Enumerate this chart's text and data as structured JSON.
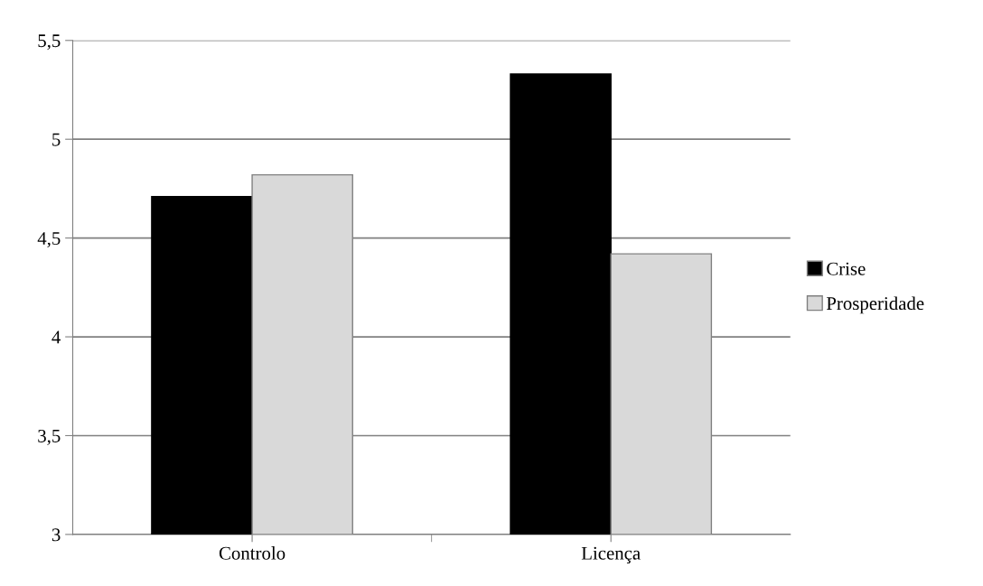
{
  "chart_data": {
    "type": "bar",
    "categories": [
      "Controlo",
      "Licença"
    ],
    "series": [
      {
        "name": "Crise",
        "color": "#000000",
        "values": [
          4.71,
          5.33
        ]
      },
      {
        "name": "Prosperidade",
        "color": "#d9d9d9",
        "values": [
          4.82,
          4.42
        ]
      }
    ],
    "ylim": [
      3,
      5.5
    ],
    "yticks": [
      3,
      {
        "value": 3.5,
        "label": "3,5"
      },
      4,
      {
        "value": 4.5,
        "label": "4,5"
      },
      5,
      {
        "value": 5.5,
        "label": "5,5"
      }
    ],
    "grid": "y",
    "legend": "right"
  }
}
